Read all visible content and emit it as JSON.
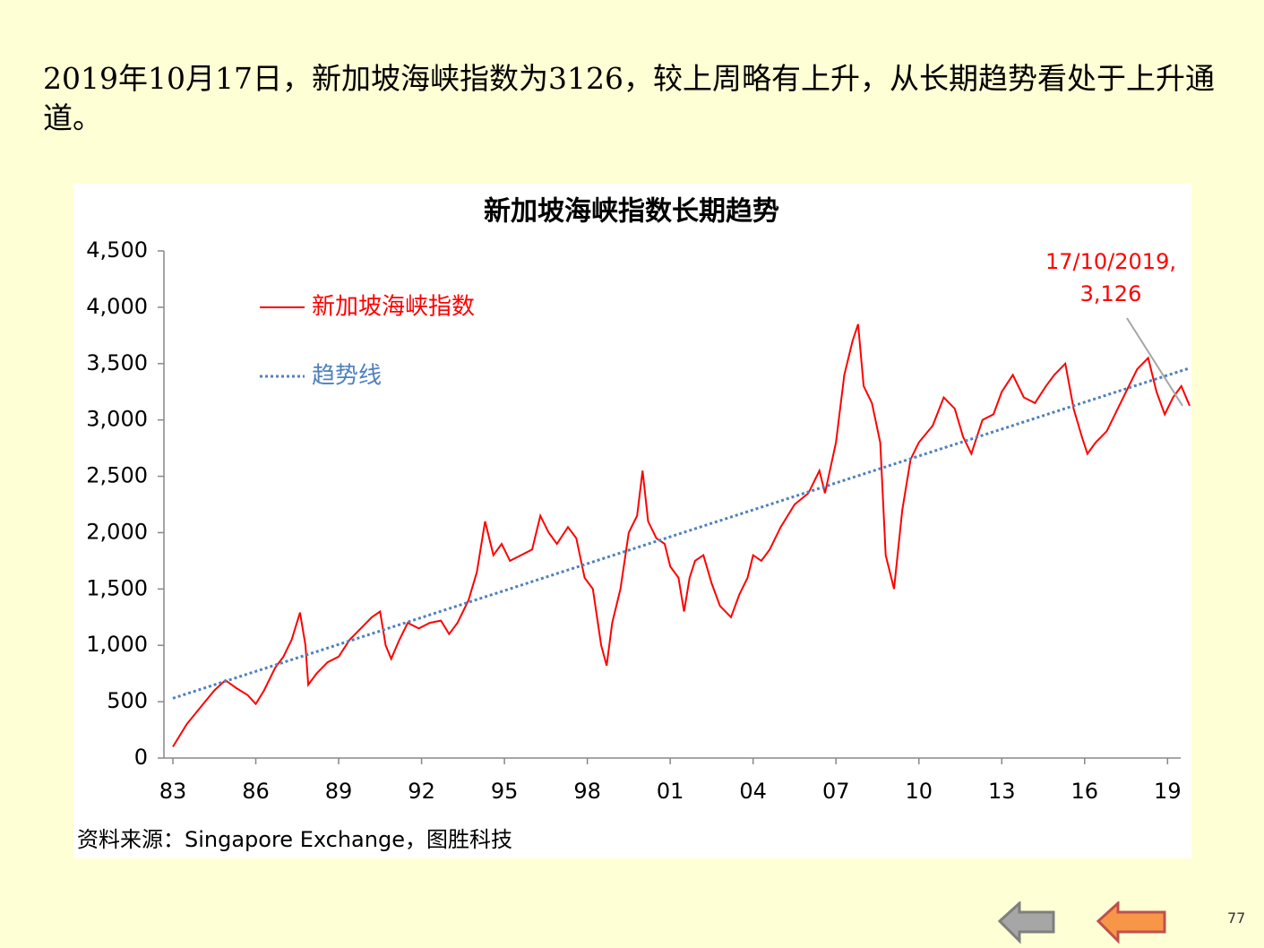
{
  "heading": "2019年10月17日，新加坡海峡指数为3126，较上周略有上升，从长期趋势看处于上升通道。",
  "chart_data": {
    "type": "line",
    "title": "新加坡海峡指数长期趋势",
    "xlim": [
      1983,
      2019.8
    ],
    "xticks": [
      {
        "value": 1983,
        "label": "83"
      },
      {
        "value": 1986,
        "label": "86"
      },
      {
        "value": 1989,
        "label": "89"
      },
      {
        "value": 1992,
        "label": "92"
      },
      {
        "value": 1995,
        "label": "95"
      },
      {
        "value": 1998,
        "label": "98"
      },
      {
        "value": 2001,
        "label": "01"
      },
      {
        "value": 2004,
        "label": "04"
      },
      {
        "value": 2007,
        "label": "07"
      },
      {
        "value": 2010,
        "label": "10"
      },
      {
        "value": 2013,
        "label": "13"
      },
      {
        "value": 2016,
        "label": "16"
      },
      {
        "value": 2019,
        "label": "19"
      }
    ],
    "ylim": [
      0,
      4500
    ],
    "yticks": [
      0,
      500,
      {
        "value": 1000,
        "label": "1,000"
      },
      {
        "value": 1500,
        "label": "1,500"
      },
      {
        "value": 2000,
        "label": "2,000"
      },
      {
        "value": 2500,
        "label": "2,500"
      },
      {
        "value": 3000,
        "label": "3,000"
      },
      {
        "value": 3500,
        "label": "3,500"
      },
      {
        "value": 4000,
        "label": "4,000"
      },
      {
        "value": 4500,
        "label": "4,500"
      }
    ],
    "grid": false,
    "series": [
      {
        "name": "新加坡海峡指数",
        "color": "#ff0000",
        "style": "solid",
        "x": [
          1983.0,
          1983.5,
          1984.0,
          1984.5,
          1984.9,
          1985.3,
          1985.7,
          1986.0,
          1986.3,
          1986.7,
          1987.0,
          1987.3,
          1987.6,
          1987.8,
          1987.9,
          1988.2,
          1988.6,
          1989.0,
          1989.4,
          1989.8,
          1990.2,
          1990.5,
          1990.7,
          1990.9,
          1991.2,
          1991.5,
          1991.9,
          1992.3,
          1992.7,
          1993.0,
          1993.3,
          1993.7,
          1994.0,
          1994.3,
          1994.6,
          1994.9,
          1995.2,
          1995.6,
          1996.0,
          1996.3,
          1996.6,
          1996.9,
          1997.3,
          1997.6,
          1997.9,
          1998.2,
          1998.5,
          1998.7,
          1998.9,
          1999.2,
          1999.5,
          1999.8,
          2000.0,
          2000.2,
          2000.5,
          2000.8,
          2001.0,
          2001.3,
          2001.5,
          2001.7,
          2001.9,
          2002.2,
          2002.5,
          2002.8,
          2003.2,
          2003.5,
          2003.8,
          2004.0,
          2004.3,
          2004.6,
          2005.0,
          2005.5,
          2006.0,
          2006.4,
          2006.6,
          2007.0,
          2007.3,
          2007.6,
          2007.8,
          2008.0,
          2008.3,
          2008.6,
          2008.8,
          2009.1,
          2009.4,
          2009.7,
          2010.0,
          2010.5,
          2010.9,
          2011.3,
          2011.6,
          2011.9,
          2012.3,
          2012.7,
          2013.0,
          2013.4,
          2013.8,
          2014.2,
          2014.6,
          2014.9,
          2015.3,
          2015.6,
          2015.9,
          2016.1,
          2016.4,
          2016.8,
          2017.2,
          2017.6,
          2017.9,
          2018.3,
          2018.6,
          2018.9,
          2019.2,
          2019.5,
          2019.8
        ],
        "values": [
          100,
          300,
          450,
          600,
          690,
          620,
          560,
          480,
          600,
          800,
          900,
          1050,
          1290,
          1000,
          650,
          750,
          850,
          900,
          1050,
          1150,
          1250,
          1300,
          1000,
          880,
          1050,
          1200,
          1150,
          1200,
          1220,
          1100,
          1200,
          1400,
          1650,
          2100,
          1800,
          1900,
          1750,
          1800,
          1850,
          2150,
          2000,
          1900,
          2050,
          1950,
          1600,
          1500,
          1000,
          820,
          1200,
          1500,
          2000,
          2150,
          2550,
          2100,
          1950,
          1900,
          1700,
          1600,
          1300,
          1600,
          1750,
          1800,
          1550,
          1350,
          1250,
          1450,
          1600,
          1800,
          1750,
          1850,
          2050,
          2250,
          2350,
          2550,
          2350,
          2800,
          3400,
          3700,
          3850,
          3300,
          3150,
          2800,
          1800,
          1500,
          2200,
          2650,
          2800,
          2950,
          3200,
          3100,
          2850,
          2700,
          3000,
          3050,
          3250,
          3400,
          3200,
          3150,
          3300,
          3400,
          3500,
          3100,
          2850,
          2700,
          2800,
          2900,
          3100,
          3300,
          3450,
          3550,
          3250,
          3050,
          3200,
          3300,
          3126
        ]
      },
      {
        "name": "趋势线",
        "color": "#4f81bd",
        "style": "dotted",
        "x": [
          1983,
          2019.8
        ],
        "values": [
          530,
          3460
        ]
      }
    ],
    "annotation": [
      "17/10/2019,",
      "3,126"
    ],
    "source": "资料来源：Singapore Exchange，图胜科技"
  },
  "page_number": "77"
}
